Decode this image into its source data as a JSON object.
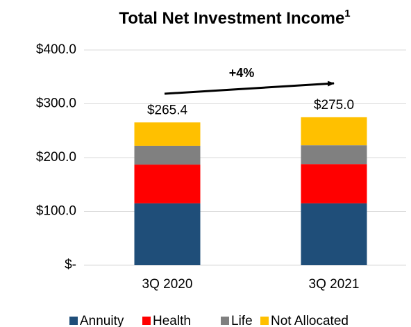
{
  "chart_data": {
    "type": "stacked_bar",
    "title": "Total Net Investment Income",
    "title_superscript": "1",
    "categories": [
      "3Q 2020",
      "3Q 2021"
    ],
    "series": [
      {
        "name": "Annuity",
        "color": "#1f4e79",
        "values": [
          115,
          115
        ]
      },
      {
        "name": "Health",
        "color": "#ff0000",
        "values": [
          72,
          73
        ]
      },
      {
        "name": "Life",
        "color": "#808080",
        "values": [
          35,
          35
        ]
      },
      {
        "name": "Not Allocated",
        "color": "#ffc000",
        "values": [
          43.4,
          52
        ]
      }
    ],
    "totals": [
      265.4,
      275.0
    ],
    "total_labels": [
      "$265.4",
      "$275.0"
    ],
    "annotation": "+4%",
    "ylim": [
      0,
      400
    ],
    "yticks": [
      {
        "value": 0,
        "label": "$-"
      },
      {
        "value": 100,
        "label": "$100.0"
      },
      {
        "value": 200,
        "label": "$200.0"
      },
      {
        "value": 300,
        "label": "$300.0"
      },
      {
        "value": 400,
        "label": "$400.0"
      }
    ],
    "grid": true,
    "legend": "bottom"
  }
}
